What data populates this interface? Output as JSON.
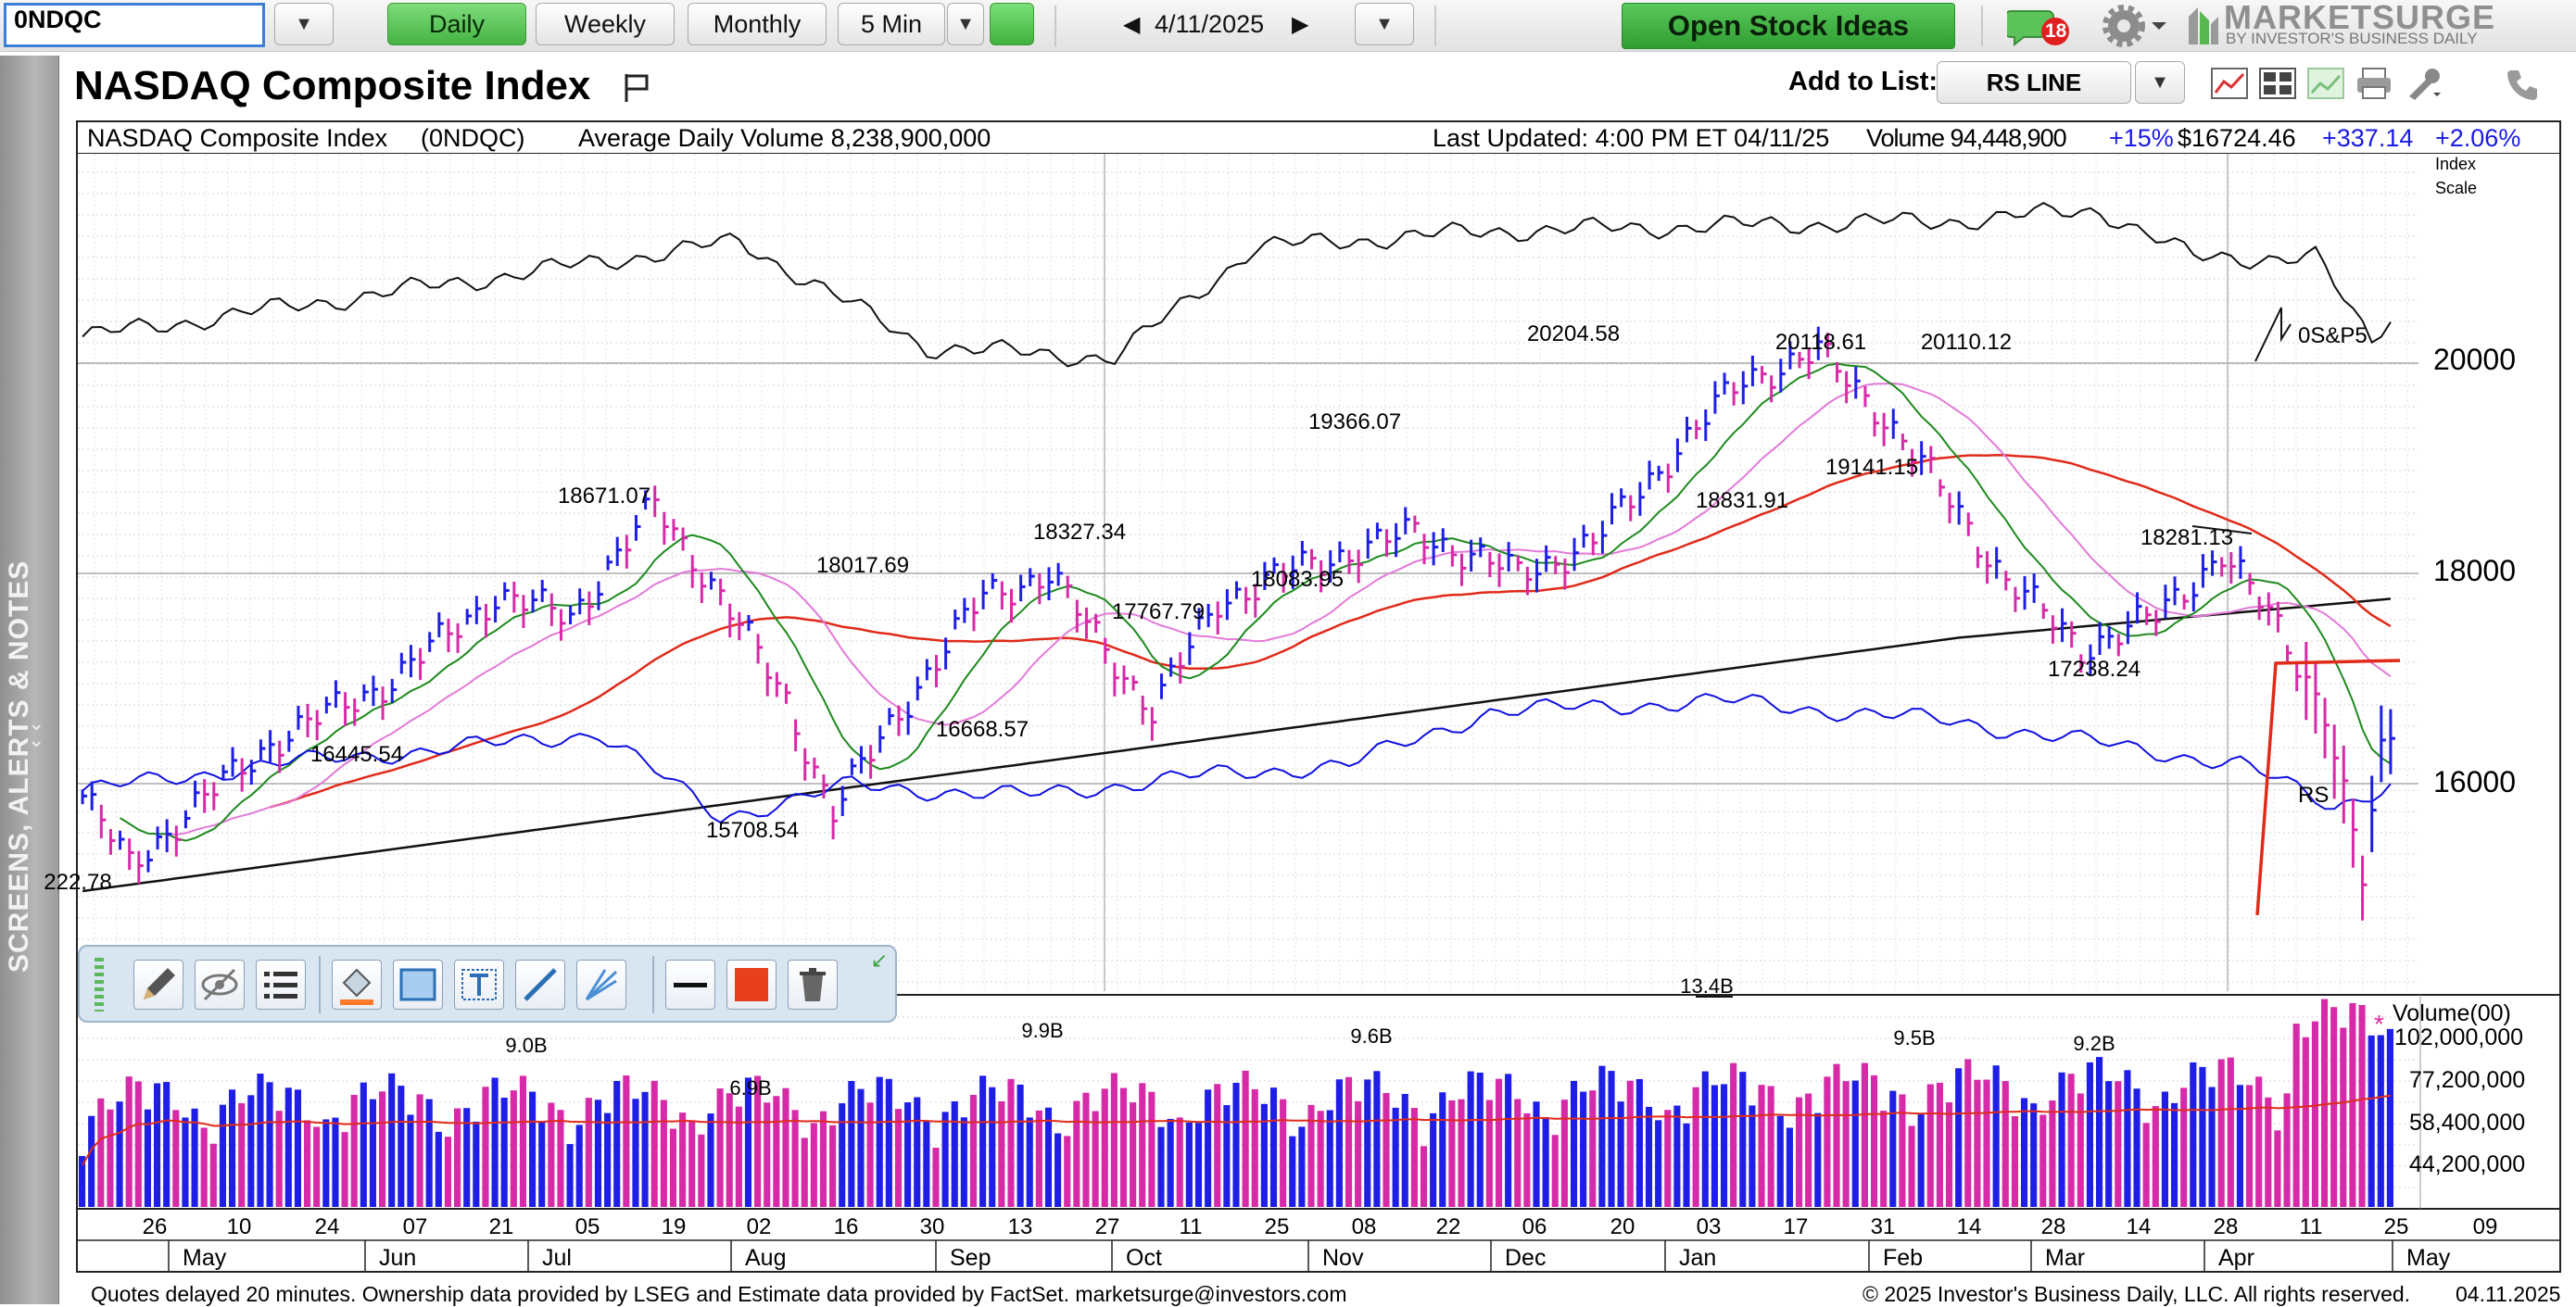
{
  "toolbar": {
    "symbol": "0NDQC",
    "periods": [
      "Daily",
      "Weekly",
      "Monthly"
    ],
    "active_period": "Daily",
    "intraday": "5 Min",
    "date": "4/11/2025",
    "open_ideas": "Open Stock Ideas",
    "alerts_count": "18",
    "brand": "MARKETSURGE",
    "brand_sub": "BY INVESTOR'S BUSINESS DAILY"
  },
  "side_tab": {
    "label": "SCREENS, ALERTS & NOTES"
  },
  "header": {
    "title": "NASDAQ Composite Index",
    "add_to_list": "Add to List:",
    "list_value": "RS LINE"
  },
  "info_bar": {
    "name": "NASDAQ Composite Index",
    "symbol": "(0NDQC)",
    "avg_volume": "Average Daily Volume 8,238,900,000",
    "last_updated": "Last Updated: 4:00 PM ET 04/11/25",
    "volume": "Volume 94,448,900",
    "volume_change": "+15%",
    "price": "$16724.46",
    "change": "+337.14",
    "change_pct": "+2.06%"
  },
  "price_axis": {
    "scale_label_1": "Index",
    "scale_label_2": "Scale",
    "ticks": [
      "20000",
      "18000",
      "16000"
    ]
  },
  "price_labels": [
    "222.78",
    "16445.54",
    "18671.07",
    "15708.54",
    "18017.69",
    "16668.57",
    "18327.34",
    "17767.79",
    "18083.95",
    "19366.07",
    "20204.58",
    "18831.91",
    "20118.61",
    "19141.15",
    "20110.12",
    "17238.24",
    "18281.13"
  ],
  "line_labels": {
    "sp": "0S&P5",
    "rs": "RS"
  },
  "volume_panel": {
    "title": "Volume(00)",
    "ticks": [
      "102,000,000",
      "77,200,000",
      "58,400,000",
      "44,200,000"
    ],
    "peak_labels": [
      "9.0B",
      "6.9B",
      "9.9B",
      "9.6B",
      "13.4B",
      "9.5B",
      "9.2B"
    ]
  },
  "x_axis": {
    "days": [
      "26",
      "10",
      "24",
      "07",
      "21",
      "05",
      "19",
      "02",
      "16",
      "30",
      "13",
      "27",
      "11",
      "25",
      "08",
      "22",
      "06",
      "20",
      "03",
      "17",
      "31",
      "14",
      "28",
      "14",
      "28",
      "11",
      "25",
      "09"
    ],
    "months": [
      "May",
      "Jun",
      "Jul",
      "Aug",
      "Sep",
      "Oct",
      "Nov",
      "Dec",
      "Jan",
      "Feb",
      "Mar",
      "Apr",
      "May"
    ],
    "end_date": "04.11.2025"
  },
  "footer": {
    "left": "Quotes delayed 20 minutes. Ownership data provided by LSEG and Estimate data provided by FactSet. marketsurge@investors.com",
    "right": "© 2025 Investor's Business Daily, LLC. All rights reserved."
  },
  "colors": {
    "up_bar": "#1e1ee6",
    "down_bar": "#d62aa8",
    "ma_red": "#e02a1a",
    "ma_green": "#1e8a1e",
    "ma_pink": "#e37ad9",
    "rs_line": "#1010e0",
    "accent_green": "#3da83a"
  }
}
